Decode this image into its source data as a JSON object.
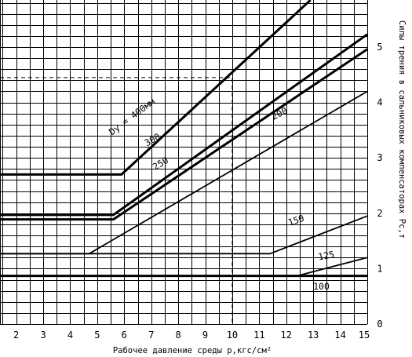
{
  "chart_data": {
    "type": "line",
    "xlabel": "Рабочее давление среды р,кгс/см²",
    "ylabel": "Силы трения в сальниковых компенсаторах Рс,т",
    "xlim": [
      1.4,
      15
    ],
    "ylim": [
      0,
      5.85
    ],
    "x_ticks": [
      "2",
      "3",
      "4",
      "5",
      "6",
      "7",
      "8",
      "9",
      "10",
      "11",
      "12",
      "13",
      "14",
      "15"
    ],
    "y_ticks": [
      "0",
      "1",
      "2",
      "3",
      "4",
      "5"
    ],
    "grid": true,
    "series": [
      {
        "name": "Dу = 400мм",
        "weight": "bold",
        "points": [
          [
            1.4,
            2.7
          ],
          [
            5.9,
            2.7
          ],
          [
            12.9,
            5.85
          ]
        ]
      },
      {
        "name": "300",
        "weight": "bold",
        "points": [
          [
            1.4,
            1.97
          ],
          [
            5.6,
            1.97
          ],
          [
            15,
            5.23
          ]
        ]
      },
      {
        "name": "250",
        "weight": "bold",
        "points": [
          [
            1.4,
            1.89
          ],
          [
            5.6,
            1.89
          ],
          [
            15,
            4.96
          ]
        ]
      },
      {
        "name": "200",
        "weight": "normal",
        "points": [
          [
            1.4,
            1.27
          ],
          [
            4.7,
            1.27
          ],
          [
            15,
            4.2
          ]
        ]
      },
      {
        "name": "150",
        "weight": "normal",
        "points": [
          [
            1.4,
            1.27
          ],
          [
            11.4,
            1.27
          ],
          [
            15,
            1.95
          ]
        ]
      },
      {
        "name": "125",
        "weight": "normal",
        "points": [
          [
            12.4,
            0.87
          ],
          [
            15,
            1.2
          ]
        ]
      },
      {
        "name": "100",
        "weight": "bold",
        "points": [
          [
            1.4,
            0.87
          ],
          [
            15,
            0.87
          ]
        ]
      }
    ],
    "guide": {
      "x": 10,
      "y": 4.45
    },
    "series_labels": [
      {
        "text": "Dу = 400мм",
        "x": 6.35,
        "y": 3.7,
        "angle": -37
      },
      {
        "text": "300",
        "x": 7.1,
        "y": 3.28,
        "angle": -30
      },
      {
        "text": "250",
        "x": 7.4,
        "y": 2.85,
        "angle": -30
      },
      {
        "text": "200",
        "x": 11.8,
        "y": 3.75,
        "angle": -27
      },
      {
        "text": "150",
        "x": 12.4,
        "y": 1.82,
        "angle": -18
      },
      {
        "text": "125",
        "x": 13.5,
        "y": 1.18,
        "angle": -10
      },
      {
        "text": "100",
        "x": 13.3,
        "y": 0.62,
        "angle": 0
      }
    ]
  }
}
